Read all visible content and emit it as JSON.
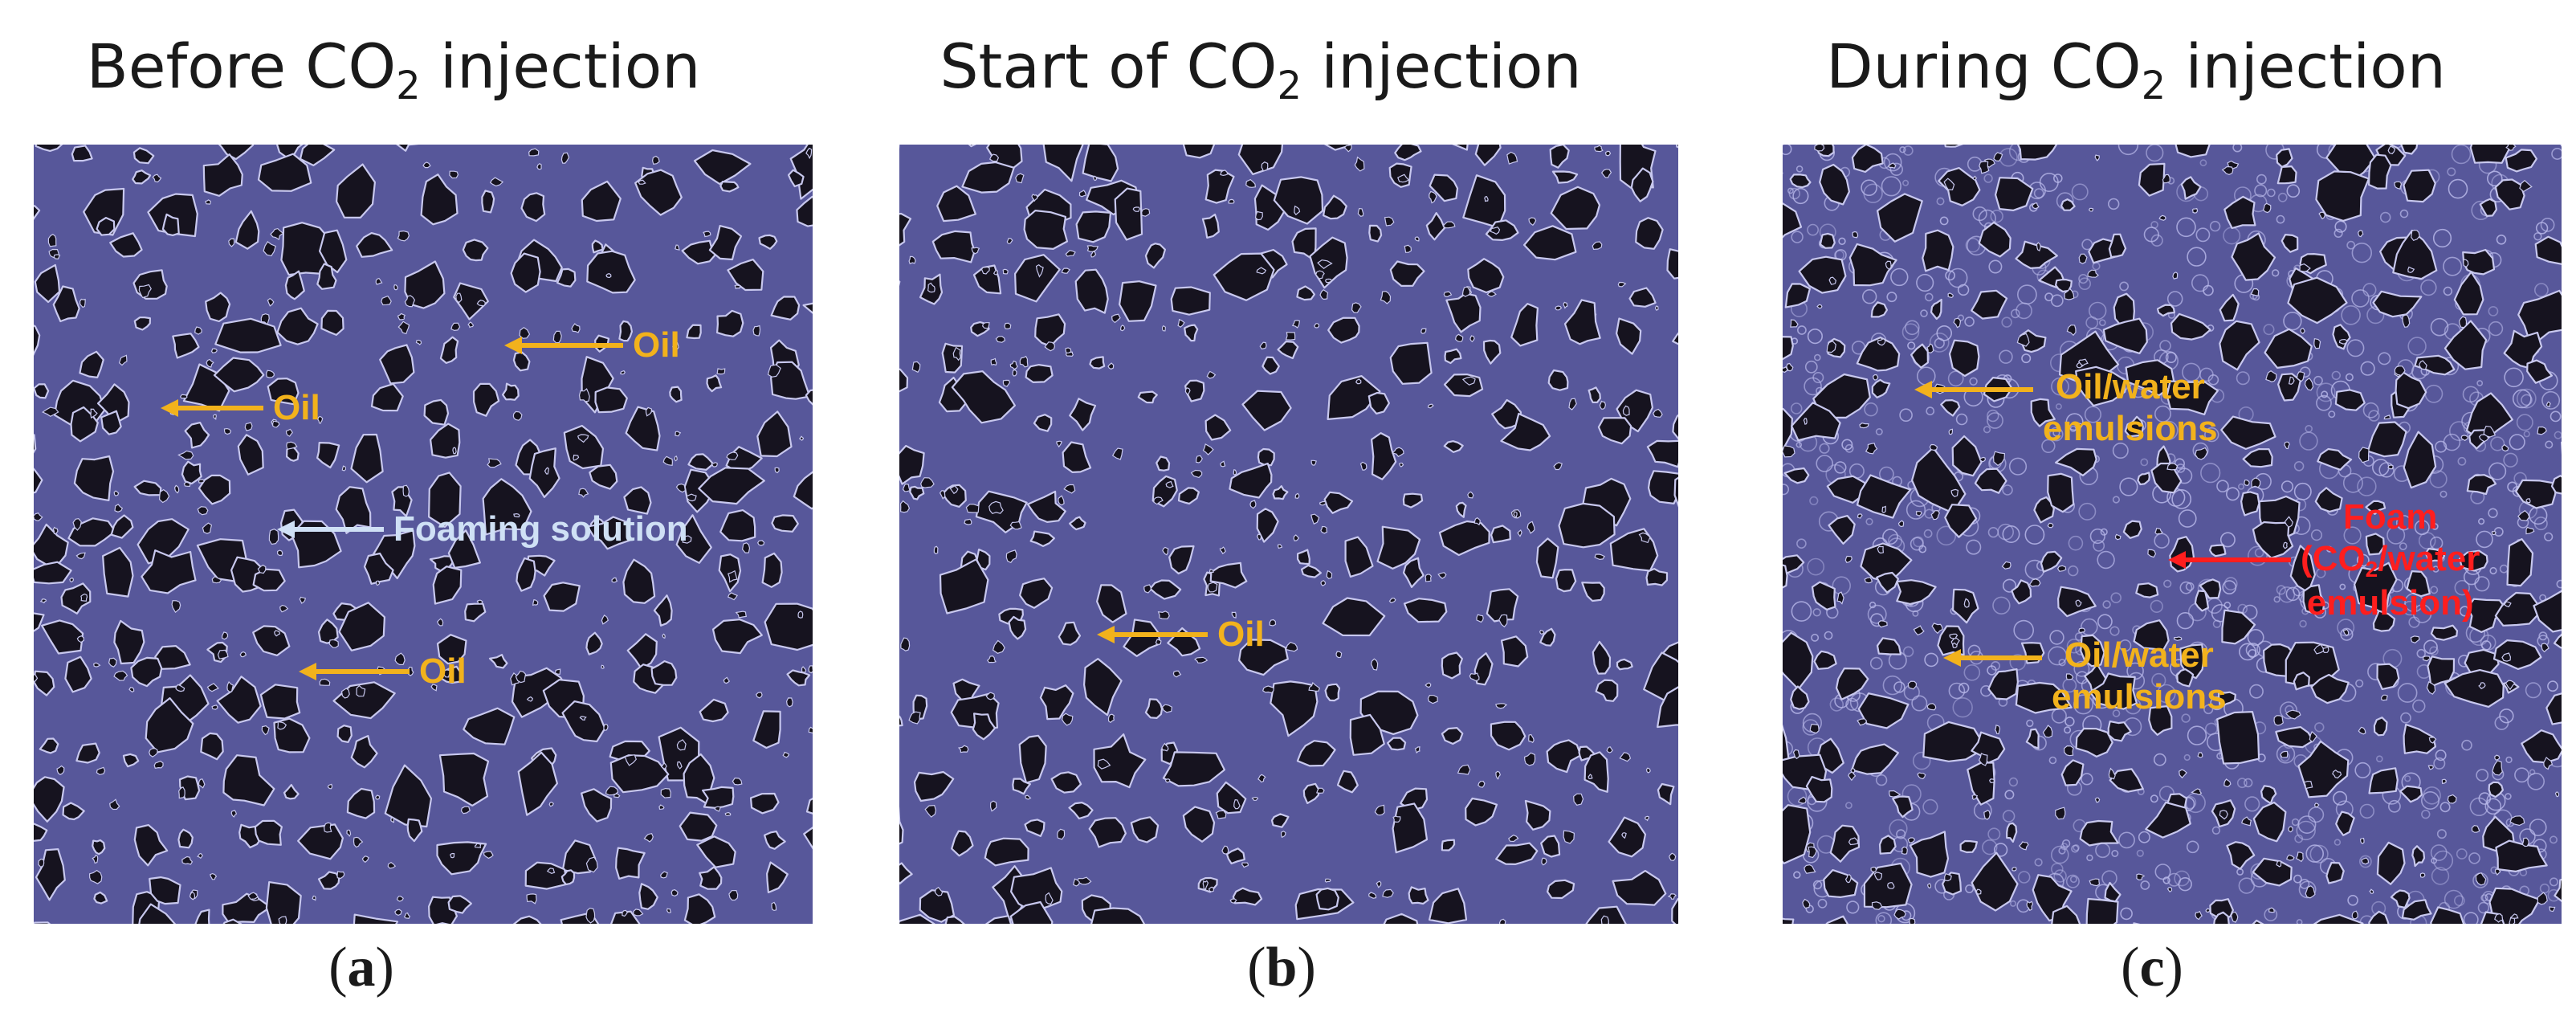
{
  "colors": {
    "pore_fluid": "#57579a",
    "grain": "#16131f",
    "rim": "#c8c8ee",
    "oil_label": "#f2b21c",
    "foaming_label": "#cfe0f5",
    "foam_label": "#ff1e1e"
  },
  "panels": [
    {
      "title_pre": "Before CO",
      "title_sub": "2",
      "title_post": " injection",
      "caption_open": "(",
      "caption_letter": "a",
      "caption_close": ")",
      "labels": {
        "oil_1": "Oil",
        "oil_2": "Oil",
        "foaming": "Foaming solution",
        "oil_3": "Oil"
      }
    },
    {
      "title_pre": "Start of CO",
      "title_sub": "2",
      "title_post": " injection",
      "caption_open": "(",
      "caption_letter": "b",
      "caption_close": ")",
      "labels": {
        "oil_1": "Oil"
      }
    },
    {
      "title_pre": "During CO",
      "title_sub": "2",
      "title_post": " injection",
      "caption_open": "(",
      "caption_letter": "c",
      "caption_close": ")",
      "labels": {
        "emulsion_1_line1": "Oil/water",
        "emulsion_1_line2": "emulsions",
        "foam_line1": "Foam",
        "foam_line2_pre": "(CO",
        "foam_line2_sub": "2",
        "foam_line2_post": "/water",
        "foam_line3": "emulsion)",
        "emulsion_2_line1": "Oil/water",
        "emulsion_2_line2": "emulsions"
      }
    }
  ]
}
